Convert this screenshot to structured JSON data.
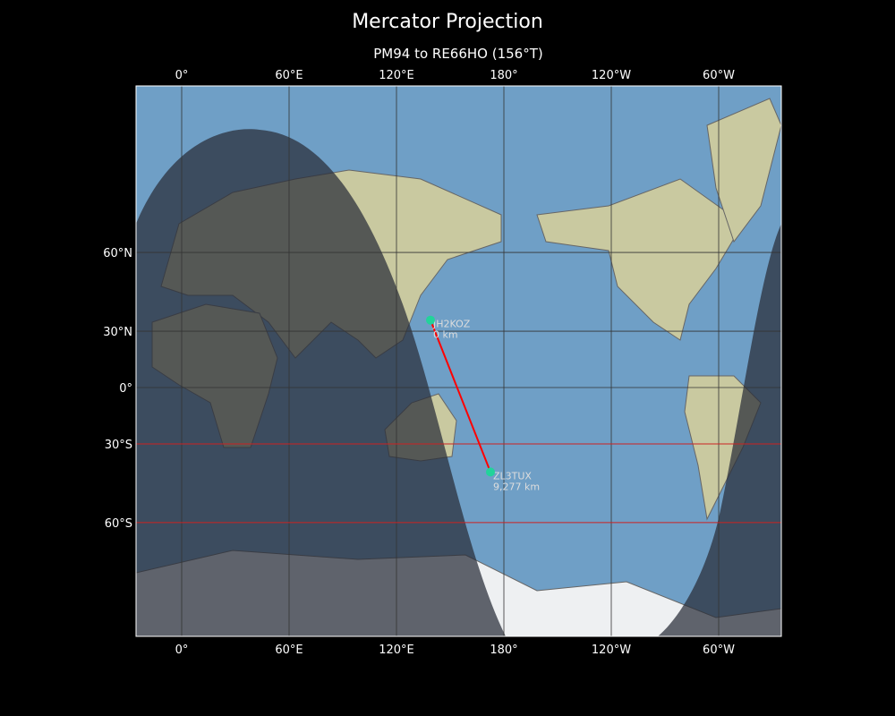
{
  "title": "Mercator Projection",
  "subtitle": "PM94 to RE66HO (156°T)",
  "map": {
    "projection": "Mercator",
    "lon_range": [
      -25,
      335
    ],
    "lat_range": [
      -80,
      85
    ],
    "ocean_color": "#6f9fc6",
    "land_color": "#c9c9a0",
    "night_shade": "rgba(40,45,55,0.72)",
    "path_color": "#ff0000",
    "marker_color": "#22d39a",
    "highlight_lat_color": "#cc2222"
  },
  "x_ticks": [
    {
      "lon": 0,
      "label": "0°"
    },
    {
      "lon": 60,
      "label": "60°E"
    },
    {
      "lon": 120,
      "label": "120°E"
    },
    {
      "lon": 180,
      "label": "180°"
    },
    {
      "lon": 240,
      "label": "120°W"
    },
    {
      "lon": 300,
      "label": "60°W"
    }
  ],
  "y_ticks": [
    {
      "lat": 60,
      "label": "60°N"
    },
    {
      "lat": 30,
      "label": "30°N"
    },
    {
      "lat": 0,
      "label": "0°"
    },
    {
      "lat": -30,
      "label": "30°S"
    },
    {
      "lat": -60,
      "label": "60°S"
    }
  ],
  "highlight_lats": [
    -30,
    -60
  ],
  "stations": [
    {
      "call": "JH2KOZ",
      "distance": "0 km",
      "lon": 139,
      "lat": 35.2
    },
    {
      "call": "ZL3TUX",
      "distance": "9,277 km",
      "lon": 172.5,
      "lat": -42.6
    }
  ]
}
